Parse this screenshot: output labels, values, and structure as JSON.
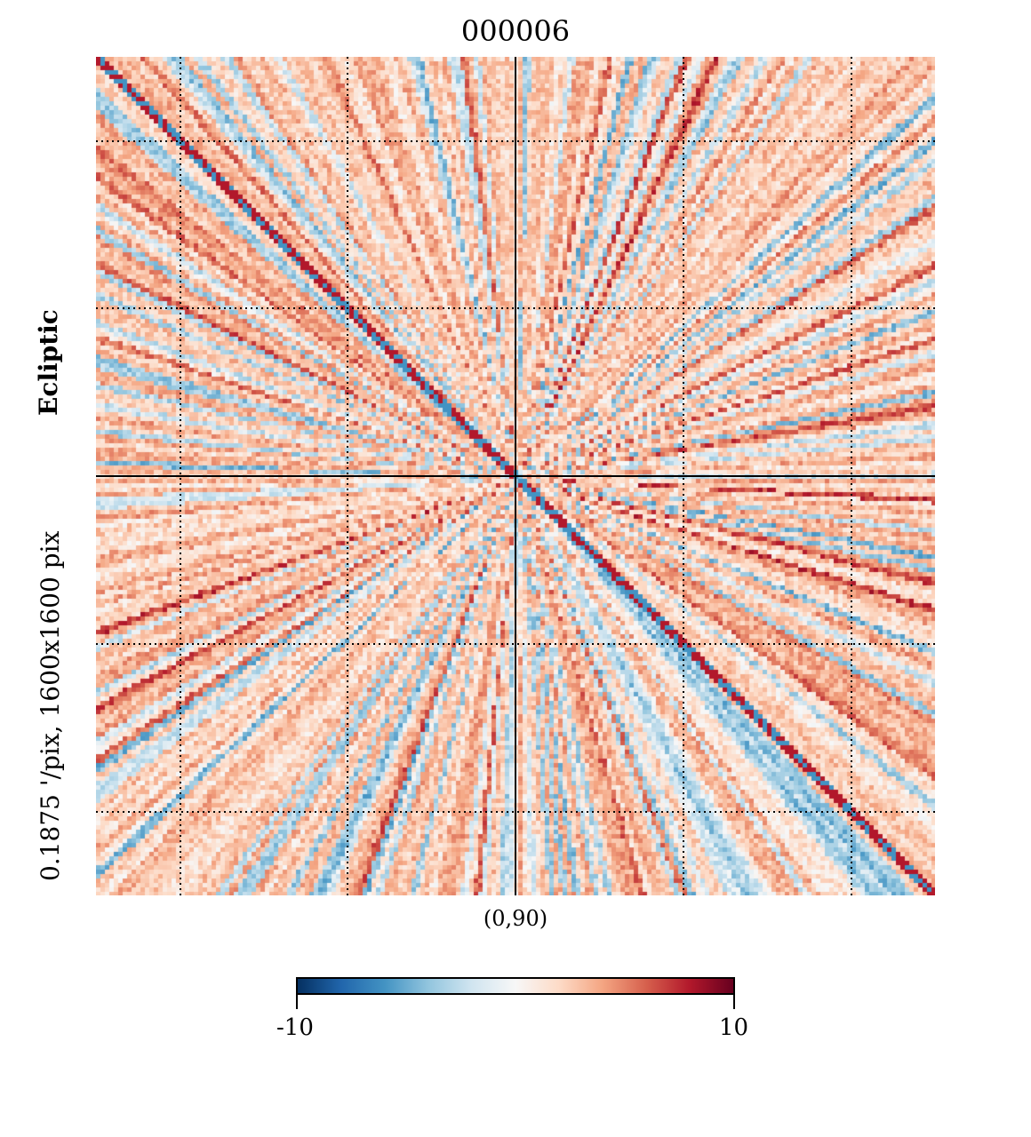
{
  "chart_data": {
    "type": "heatmap",
    "title": "000006",
    "projection": "gnomonic",
    "center_label": "(0,90)",
    "coord_label": "Ecliptic",
    "resolution_label": "0.1875 '/pix,  1600x1600 pix",
    "colormap": "RdBu_r",
    "colorbar": {
      "min": -10,
      "max": 10,
      "tick_labels": [
        "-10",
        "10"
      ]
    },
    "grid": true,
    "colors": [
      "#053061",
      "#2166ac",
      "#4393c3",
      "#92c5de",
      "#d1e5f0",
      "#f7f7f7",
      "#fddbc7",
      "#f4a582",
      "#d6604d",
      "#b2182b",
      "#67001f"
    ]
  }
}
